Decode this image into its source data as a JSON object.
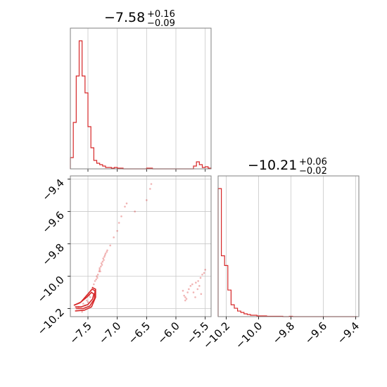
{
  "chart_data": {
    "type": "corner",
    "color": "#d62728",
    "grid": true,
    "parameters": [
      {
        "title": {
          "median": "−7.58",
          "plus": "+0.16",
          "minus": "−0.09"
        },
        "range": [
          -7.8,
          -5.4
        ],
        "ticks": [
          -7.5,
          -7.0,
          -6.5,
          -6.0,
          -5.5
        ],
        "tick_labels": [
          "−7.5",
          "−7.0",
          "−6.5",
          "−6.0",
          "−5.5"
        ]
      },
      {
        "title": {
          "median": "−10.21",
          "plus": "+0.06",
          "minus": "−0.02"
        },
        "range": [
          -10.25,
          -9.38
        ],
        "ticks": [
          -10.2,
          -10.0,
          -9.8,
          -9.6,
          -9.4
        ],
        "tick_labels": [
          "−10.2",
          "−10.0",
          "−9.8",
          "−9.6",
          "−9.4"
        ]
      }
    ],
    "hist_1": {
      "bin_edges": [
        -7.8,
        -7.75,
        -7.7,
        -7.65,
        -7.6,
        -7.55,
        -7.5,
        -7.45,
        -7.4,
        -7.35,
        -7.3,
        -7.25,
        -7.2,
        -7.15,
        -7.1,
        -7.05,
        -7.0,
        -6.95,
        -6.9,
        -6.85,
        -6.8,
        -6.75,
        -6.7,
        -6.65,
        -6.6,
        -6.55,
        -6.5,
        -6.45,
        -6.4,
        -6.35,
        -6.3,
        -6.25,
        -6.2,
        -6.15,
        -6.1,
        -6.05,
        -6.0,
        -5.95,
        -5.9,
        -5.85,
        -5.8,
        -5.75,
        -5.7,
        -5.65,
        -5.6,
        -5.55,
        -5.5,
        -5.45,
        -5.4
      ],
      "counts": [
        8,
        33,
        66,
        91,
        66,
        54,
        30,
        15,
        6,
        4,
        3,
        2,
        1,
        1,
        0.5,
        1,
        0.5,
        0.5,
        0,
        0,
        0,
        0,
        0,
        0,
        0,
        0,
        0.5,
        0.5,
        0,
        0,
        0,
        0,
        0,
        0,
        0,
        0,
        0,
        0,
        0,
        0,
        0,
        0,
        2,
        5,
        3,
        1,
        1.5,
        0.5,
        0
      ]
    },
    "hist_2": {
      "bin_edges": [
        -10.25,
        -10.23,
        -10.21,
        -10.19,
        -10.17,
        -10.15,
        -10.13,
        -10.11,
        -10.09,
        -10.07,
        -10.05,
        -10.03,
        -10.01,
        -9.99,
        -9.97,
        -9.95,
        -9.93,
        -9.91,
        -9.89,
        -9.87,
        -9.85,
        -9.83,
        -9.81,
        -9.79,
        -9.77,
        -9.75,
        -9.73,
        -9.71,
        -9.69,
        -9.67,
        -9.65,
        -9.63,
        -9.61,
        -9.59,
        -9.57,
        -9.55,
        -9.53,
        -9.51,
        -9.49,
        -9.47,
        -9.45,
        -9.43,
        -9.41,
        -9.39
      ],
      "counts": [
        183,
        87,
        73,
        38,
        17,
        12,
        8,
        6,
        4,
        3,
        2,
        2,
        1,
        1,
        1,
        0.5,
        0.5,
        0.5,
        0.5,
        0.5,
        0,
        0,
        0.5,
        0,
        0,
        0,
        0,
        0,
        0,
        0,
        0,
        0,
        0,
        0,
        0,
        0,
        0,
        0,
        0,
        0,
        0,
        0,
        0
      ]
    },
    "contours": [
      [
        [
          -7.72,
          -10.19
        ],
        [
          -7.62,
          -10.19
        ],
        [
          -7.5,
          -10.175
        ],
        [
          -7.42,
          -10.14
        ],
        [
          -7.4,
          -10.11
        ],
        [
          -7.44,
          -10.1
        ],
        [
          -7.52,
          -10.13
        ],
        [
          -7.64,
          -10.165
        ],
        [
          -7.74,
          -10.18
        ]
      ],
      [
        [
          -7.7,
          -10.2
        ],
        [
          -7.58,
          -10.2
        ],
        [
          -7.47,
          -10.185
        ],
        [
          -7.39,
          -10.14
        ],
        [
          -7.38,
          -10.09
        ],
        [
          -7.43,
          -10.08
        ],
        [
          -7.5,
          -10.11
        ],
        [
          -7.62,
          -10.16
        ],
        [
          -7.74,
          -10.18
        ]
      ],
      [
        [
          -7.72,
          -10.215
        ],
        [
          -7.56,
          -10.21
        ],
        [
          -7.44,
          -10.19
        ],
        [
          -7.37,
          -10.13
        ],
        [
          -7.37,
          -10.08
        ],
        [
          -7.43,
          -10.07
        ]
      ]
    ],
    "scatter": [
      [
        -7.42,
        -10.07
      ],
      [
        -7.4,
        -10.05
      ],
      [
        -7.38,
        -10.03
      ],
      [
        -7.36,
        -10.02
      ],
      [
        -7.35,
        -10.0
      ],
      [
        -7.33,
        -9.99
      ],
      [
        -7.31,
        -9.97
      ],
      [
        -7.3,
        -9.95
      ],
      [
        -7.28,
        -9.94
      ],
      [
        -7.27,
        -9.92
      ],
      [
        -7.25,
        -9.91
      ],
      [
        -7.24,
        -9.89
      ],
      [
        -7.22,
        -9.88
      ],
      [
        -7.21,
        -9.87
      ],
      [
        -7.2,
        -9.86
      ],
      [
        -7.18,
        -9.85
      ],
      [
        -7.17,
        -9.84
      ],
      [
        -7.3,
        -9.96
      ],
      [
        -7.29,
        -9.97
      ],
      [
        -7.34,
        -10.01
      ],
      [
        -7.26,
        -9.93
      ],
      [
        -7.23,
        -9.9
      ],
      [
        -7.45,
        -10.09
      ],
      [
        -7.48,
        -10.12
      ],
      [
        -7.52,
        -10.15
      ],
      [
        -7.58,
        -10.17
      ],
      [
        -7.66,
        -10.19
      ],
      [
        -7.7,
        -10.2
      ],
      [
        -7.6,
        -10.22
      ],
      [
        -7.55,
        -10.18
      ],
      [
        -7.5,
        -10.16
      ],
      [
        -7.46,
        -10.13
      ],
      [
        -7.12,
        -9.81
      ],
      [
        -7.06,
        -9.76
      ],
      [
        -7.0,
        -9.72
      ],
      [
        -6.97,
        -9.67
      ],
      [
        -6.93,
        -9.63
      ],
      [
        -6.87,
        -9.57
      ],
      [
        -6.84,
        -9.55
      ],
      [
        -6.42,
        -9.43
      ],
      [
        -6.44,
        -9.46
      ],
      [
        -6.5,
        -9.53
      ],
      [
        -6.7,
        -9.6
      ],
      [
        -5.88,
        -10.09
      ],
      [
        -5.86,
        -10.12
      ],
      [
        -5.84,
        -10.13
      ],
      [
        -5.82,
        -10.14
      ],
      [
        -5.84,
        -10.15
      ],
      [
        -5.8,
        -10.1
      ],
      [
        -5.78,
        -10.08
      ],
      [
        -5.75,
        -10.06
      ],
      [
        -5.72,
        -10.05
      ],
      [
        -5.66,
        -10.04
      ],
      [
        -5.62,
        -10.03
      ],
      [
        -5.58,
        -10.01
      ],
      [
        -5.55,
        -9.99
      ],
      [
        -5.6,
        -10.06
      ],
      [
        -5.63,
        -10.08
      ],
      [
        -5.5,
        -9.96
      ],
      [
        -5.52,
        -9.98
      ],
      [
        -5.7,
        -10.1
      ],
      [
        -5.57,
        -10.11
      ],
      [
        -5.67,
        -10.13
      ]
    ]
  }
}
